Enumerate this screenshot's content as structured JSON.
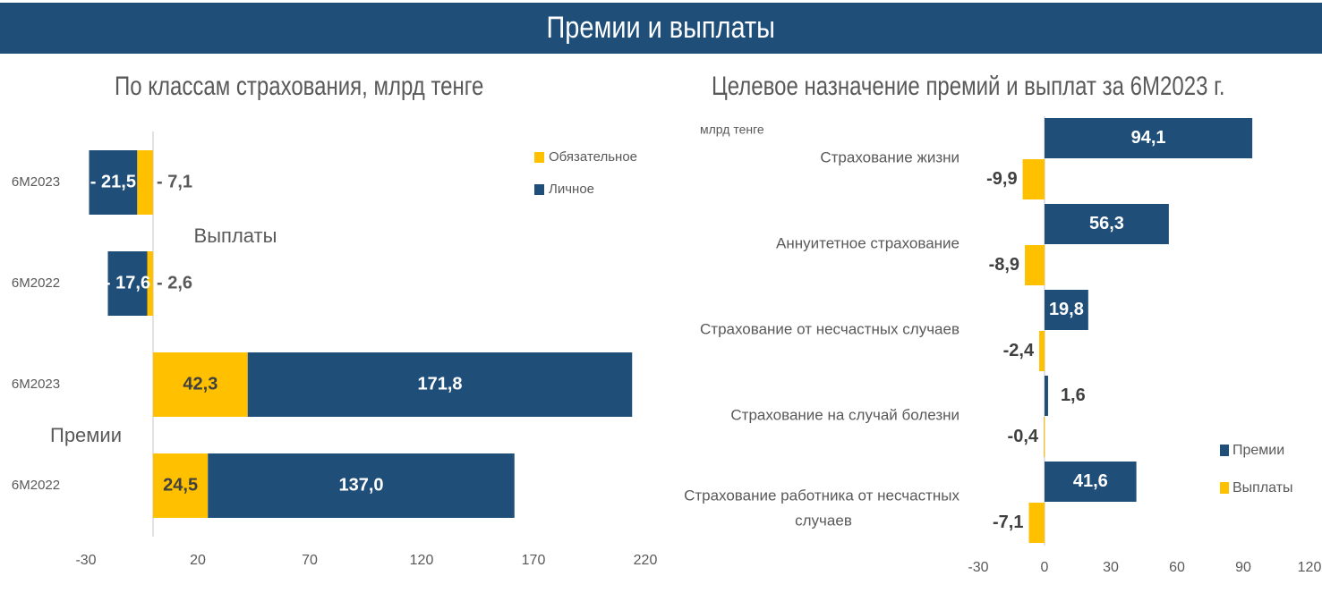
{
  "header": {
    "title": "Премии и выплаты"
  },
  "colors": {
    "navy": "#1f4e79",
    "yellow": "#ffc000",
    "text": "#595959",
    "axis": "#d9d9d9"
  },
  "chart_data": [
    {
      "type": "bar",
      "orientation": "horizontal-stacked",
      "title": "По классам страхования, млрд тенге",
      "groups": [
        {
          "label": "Выплаты",
          "categories": [
            "6M2023",
            "6M2022"
          ]
        },
        {
          "label": "Премии",
          "categories": [
            "6M2023",
            "6M2022"
          ]
        }
      ],
      "rows": [
        {
          "group": "Выплаты",
          "category": "6M2023",
          "Обязательное": -7.1,
          "Личное": -21.5,
          "labels": [
            "- 7,1",
            "- 21,5"
          ]
        },
        {
          "group": "Выплаты",
          "category": "6M2022",
          "Обязательное": -2.6,
          "Личное": -17.6,
          "labels": [
            "- 2,6",
            "- 17,6"
          ]
        },
        {
          "group": "Премии",
          "category": "6M2023",
          "Обязательное": 42.3,
          "Личное": 171.8,
          "labels": [
            "42,3",
            "171,8"
          ]
        },
        {
          "group": "Премии",
          "category": "6M2022",
          "Обязательное": 24.5,
          "Личное": 137.0,
          "labels": [
            "24,5",
            "137,0"
          ]
        }
      ],
      "series": [
        {
          "name": "Обязательное",
          "color": "#ffc000"
        },
        {
          "name": "Личное",
          "color": "#1f4e79"
        }
      ],
      "xlim": [
        -30,
        220
      ],
      "xticks": [
        -30,
        20,
        70,
        120,
        170,
        220
      ],
      "legend": "top-right"
    },
    {
      "type": "bar",
      "orientation": "horizontal-grouped",
      "title": "Целевое назначение премий и выплат за 6М2023 г.",
      "unit_label": "млрд тенге",
      "categories": [
        "Страхование жизни",
        "Аннуитетное страхование",
        "Страхование от несчастных случаев",
        "Страхование на случай болезни",
        "Страхование работника от несчастных случаев"
      ],
      "category_lines": [
        [
          "Страхование жизни"
        ],
        [
          "Аннуитетное страхование"
        ],
        [
          "Страхование от несчастных случаев"
        ],
        [
          "Страхование на случай болезни"
        ],
        [
          "Страхование работника от несчастных",
          "случаев"
        ]
      ],
      "series": [
        {
          "name": "Премии",
          "color": "#1f4e79",
          "values": [
            94.1,
            56.3,
            19.8,
            1.6,
            41.6
          ],
          "labels": [
            "94,1",
            "56,3",
            "19,8",
            "1,6",
            "41,6"
          ]
        },
        {
          "name": "Выплаты",
          "color": "#ffc000",
          "values": [
            -9.9,
            -8.9,
            -2.4,
            -0.4,
            -7.1
          ],
          "labels": [
            "-9,9",
            "-8,9",
            "-2,4",
            "-0,4",
            "-7,1"
          ]
        }
      ],
      "xlim": [
        -30,
        120
      ],
      "xticks": [
        -30,
        0,
        30,
        60,
        90,
        120
      ],
      "legend": "bottom-right"
    }
  ]
}
